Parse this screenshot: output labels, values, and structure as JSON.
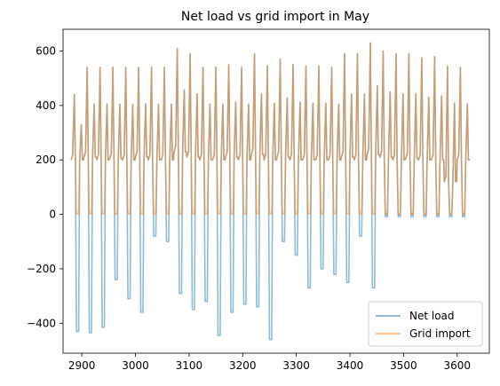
{
  "chart_data": {
    "type": "line",
    "title": "Net load vs grid import in May",
    "xlabel": "",
    "ylabel": "",
    "xlim": [
      2865,
      3660
    ],
    "ylim": [
      -510,
      680
    ],
    "xticks": [
      2900,
      3000,
      3100,
      3200,
      3300,
      3400,
      3500,
      3600
    ],
    "yticks": [
      -400,
      -200,
      0,
      200,
      400,
      600
    ],
    "grid": false,
    "legend_position": "lower-right",
    "x_start": 2880,
    "x_end": 3624,
    "series": [
      {
        "name": "Net load",
        "color": "#1f77b4",
        "alpha": 0.5,
        "daily_min": [
          -430,
          -435,
          -415,
          -240,
          -310,
          -360,
          -80,
          -100,
          -290,
          -350,
          -320,
          -445,
          -360,
          -330,
          -340,
          -460,
          -100,
          -150,
          -270,
          -200,
          -220,
          -250,
          -80,
          -270,
          -10,
          -10,
          -10,
          -10,
          -10,
          -10,
          -10
        ]
      },
      {
        "name": "Grid import",
        "color": "#ff7f0e",
        "alpha": 0.5,
        "daily_min": [
          0,
          0,
          0,
          0,
          0,
          0,
          0,
          0,
          0,
          0,
          0,
          0,
          0,
          0,
          0,
          0,
          0,
          0,
          0,
          0,
          0,
          0,
          0,
          0,
          0,
          0,
          0,
          0,
          0,
          0,
          0
        ]
      }
    ],
    "daily_max": [
      440,
      540,
      540,
      540,
      540,
      540,
      540,
      540,
      610,
      590,
      540,
      540,
      550,
      540,
      590,
      545,
      570,
      550,
      545,
      545,
      540,
      590,
      590,
      630,
      600,
      590,
      590,
      575,
      580,
      545,
      540
    ],
    "daily_evening": [
      200,
      210,
      200,
      205,
      200,
      210,
      200,
      200,
      230,
      210,
      200,
      200,
      210,
      200,
      220,
      200,
      210,
      200,
      200,
      200,
      200,
      210,
      200,
      220,
      210,
      200,
      205,
      200,
      200,
      120,
      200
    ]
  }
}
